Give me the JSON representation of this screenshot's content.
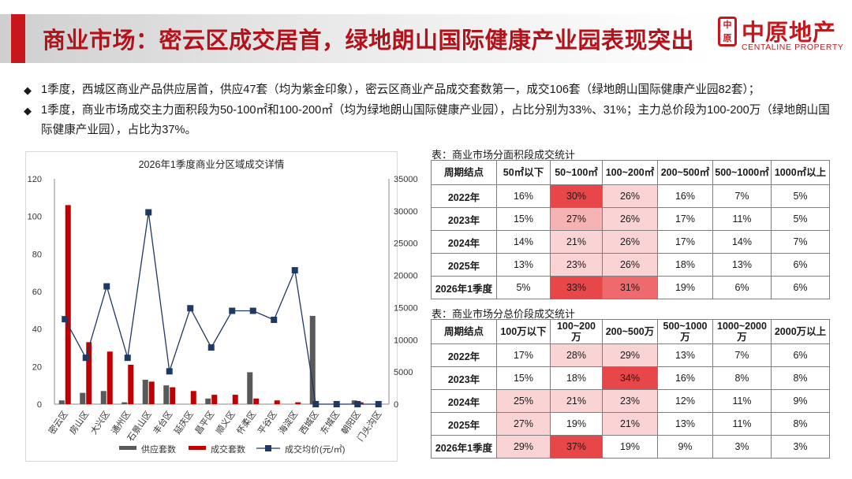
{
  "header": {
    "title": "商业市场：密云区成交居首，绿地朗山国际健康产业园表现突出"
  },
  "logo": {
    "cn": "中原地产",
    "en": "CENTALINE PROPERTY",
    "mark": "中原"
  },
  "bullets": [
    "1季度，西城区商业产品供应居首，供应47套（均为紫金印象），密云区商业产品成交套数第一，成交106套（绿地朗山国际健康产业园82套）；",
    "1季度，商业市场成交主力面积段为50-100㎡和100-200㎡（均为绿地朗山国际健康产业园），占比分别为33%、31%；主力总价段为100-200万（绿地朗山国际健康产业园），占比为37%。"
  ],
  "chart_data": {
    "type": "bar",
    "title": "2026年1季度商业分区域成交详情",
    "categories": [
      "密云区",
      "房山区",
      "大兴区",
      "通州区",
      "石景山区",
      "丰台区",
      "延庆区",
      "昌平区",
      "顺义区",
      "怀柔区",
      "平谷区",
      "海淀区",
      "西城区",
      "东城区",
      "朝阳区",
      "门头沟区"
    ],
    "series": [
      {
        "name": "供应套数",
        "type": "bar",
        "axis": "left",
        "color": "#595959",
        "values": [
          2,
          6,
          7,
          1,
          13,
          10,
          0,
          3,
          0,
          17,
          0,
          0,
          47,
          0,
          2,
          0
        ]
      },
      {
        "name": "成交套数",
        "type": "bar",
        "axis": "left",
        "color": "#c00000",
        "values": [
          106,
          33,
          28,
          21,
          12,
          9,
          7,
          5,
          5,
          3,
          2,
          1,
          0,
          0,
          1,
          0
        ]
      },
      {
        "name": "成交均价(元/㎡)",
        "type": "line",
        "axis": "right",
        "color": "#1f3864",
        "values": [
          13200,
          7200,
          18300,
          7200,
          29800,
          5100,
          14900,
          8800,
          14500,
          14500,
          13100,
          20800,
          0,
          0,
          0,
          0
        ]
      }
    ],
    "ylim": [
      0,
      120
    ],
    "yticks": [
      0,
      20,
      40,
      60,
      80,
      100,
      120
    ],
    "y2lim": [
      0,
      35000
    ],
    "y2ticks": [
      0,
      5000,
      10000,
      15000,
      20000,
      25000,
      30000,
      35000
    ],
    "legend": "bottom",
    "grid": false
  },
  "area_table": {
    "caption": "表：商业市场分面积段成交统计",
    "headers": [
      "周期结点",
      "50㎡以下",
      "50~100㎡",
      "100~200㎡",
      "200~500㎡",
      "500~1000㎡",
      "1000㎡以上"
    ],
    "rows": [
      [
        "2022年",
        "16%",
        "30%",
        "26%",
        "16%",
        "7%",
        "5%"
      ],
      [
        "2023年",
        "15%",
        "27%",
        "26%",
        "17%",
        "11%",
        "5%"
      ],
      [
        "2024年",
        "14%",
        "21%",
        "26%",
        "17%",
        "14%",
        "7%"
      ],
      [
        "2025年",
        "13%",
        "23%",
        "26%",
        "18%",
        "13%",
        "6%"
      ],
      [
        "2026年1季度",
        "5%",
        "33%",
        "31%",
        "19%",
        "6%",
        "6%"
      ]
    ],
    "highlight": [
      [
        "",
        "",
        "#e8474a",
        "#fad4d5",
        "",
        "",
        ""
      ],
      [
        "",
        "",
        "#f6b3b4",
        "#fad4d5",
        "",
        "",
        ""
      ],
      [
        "",
        "",
        "#fad4d5",
        "#fad4d5",
        "",
        "",
        ""
      ],
      [
        "",
        "",
        "#fad4d5",
        "#fad4d5",
        "",
        "",
        ""
      ],
      [
        "",
        "",
        "#e8474a",
        "#ee6a6c",
        "",
        "",
        ""
      ]
    ]
  },
  "price_table": {
    "caption": "表：商业市场分总价段成交统计",
    "headers": [
      "周期结点",
      "100万以下",
      "100~200万",
      "200~500万",
      "500~1000万",
      "1000~2000万",
      "2000万以上"
    ],
    "rows": [
      [
        "2022年",
        "17%",
        "28%",
        "29%",
        "13%",
        "7%",
        "6%"
      ],
      [
        "2023年",
        "15%",
        "18%",
        "34%",
        "16%",
        "8%",
        "8%"
      ],
      [
        "2024年",
        "25%",
        "21%",
        "23%",
        "12%",
        "11%",
        "9%"
      ],
      [
        "2025年",
        "27%",
        "19%",
        "21%",
        "13%",
        "11%",
        "8%"
      ],
      [
        "2026年1季度",
        "29%",
        "37%",
        "19%",
        "9%",
        "3%",
        "3%"
      ]
    ],
    "highlight": [
      [
        "",
        "",
        "#fad4d5",
        "#fad4d5",
        "",
        "",
        ""
      ],
      [
        "",
        "",
        "",
        "#e8474a",
        "",
        "",
        ""
      ],
      [
        "",
        "#fad4d5",
        "#fad4d5",
        "#fad4d5",
        "",
        "",
        ""
      ],
      [
        "",
        "#fad4d5",
        "",
        "#fad4d5",
        "",
        "",
        ""
      ],
      [
        "",
        "#fad4d5",
        "#e8474a",
        "",
        "",
        "",
        ""
      ]
    ]
  }
}
